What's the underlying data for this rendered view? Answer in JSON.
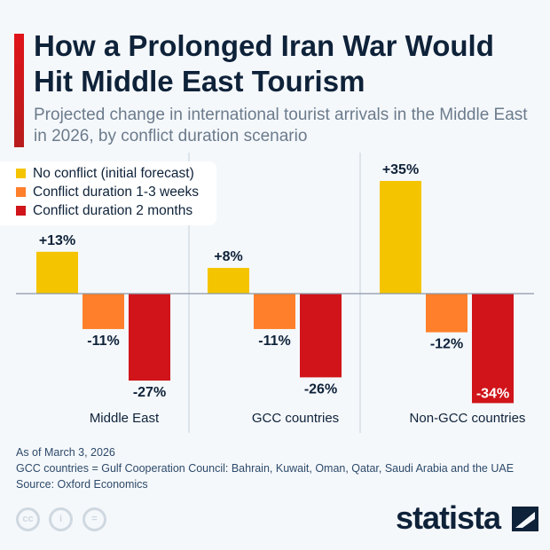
{
  "title": "How a Prolonged Iran War Would Hit Middle East Tourism",
  "subtitle": "Projected change in international tourist arrivals in the Middle East in 2026, by conflict duration scenario",
  "footer": {
    "note1": "As of March 3, 2026",
    "note2": "GCC countries = Gulf Cooperation Council: Bahrain, Kuwait, Oman, Qatar, Saudi Arabia and the UAE",
    "source": "Source: Oxford Economics",
    "brand": "statista"
  },
  "chart_data": {
    "type": "bar",
    "categories": [
      "Middle East",
      "GCC countries",
      "Non-GCC countries"
    ],
    "series": [
      {
        "name": "No conflict (initial forecast)",
        "color": "#f5c400",
        "values": [
          13,
          8,
          35
        ]
      },
      {
        "name": "Conflict duration 1-3 weeks",
        "color": "#ff7f2a",
        "values": [
          -11,
          -11,
          -12
        ]
      },
      {
        "name": "Conflict duration 2 months",
        "color": "#d0141a",
        "values": [
          -27,
          -26,
          -34
        ]
      }
    ],
    "data_labels": [
      [
        "+13%",
        "-11%",
        "-27%"
      ],
      [
        "+8%",
        "-11%",
        "-26%"
      ],
      [
        "+35%",
        "-12%",
        "-34%"
      ]
    ],
    "legend": "top-left",
    "grid": false
  }
}
